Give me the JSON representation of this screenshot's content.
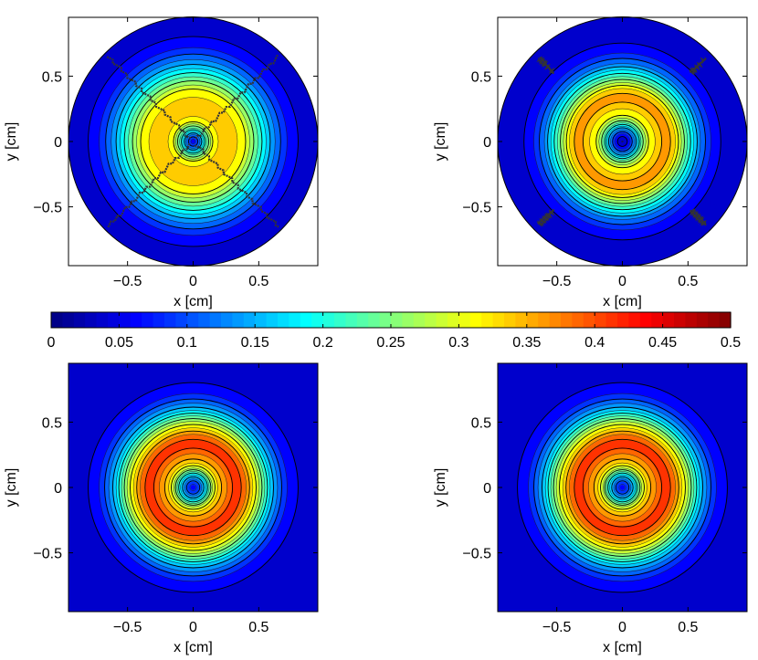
{
  "colorbar": {
    "colormap": "jet",
    "range": [
      0,
      0.5
    ],
    "ticks": [
      "0",
      "0.05",
      "0.1",
      "0.15",
      "0.2",
      "0.25",
      "0.3",
      "0.35",
      "0.4",
      "0.45",
      "0.5"
    ]
  },
  "chart_data": [
    {
      "type": "heatmap",
      "subtype": "filled-contour",
      "panel": "top-left",
      "domain_shape": "circle",
      "xlabel": "x [cm]",
      "ylabel": "y [cm]",
      "xlim": [
        -0.95,
        0.95
      ],
      "ylim": [
        -0.95,
        0.95
      ],
      "xticks": [
        "−0.5",
        "0",
        "0.5"
      ],
      "yticks": [
        "0.5",
        "0",
        "−0.5"
      ],
      "radial_profile": {
        "r": [
          0,
          0.05,
          0.1,
          0.15,
          0.2,
          0.3,
          0.4,
          0.5,
          0.6,
          0.7,
          0.8,
          0.95
        ],
        "value": [
          0.05,
          0.12,
          0.22,
          0.3,
          0.33,
          0.34,
          0.3,
          0.22,
          0.14,
          0.08,
          0.05,
          0.04
        ]
      },
      "features": "noisy contours with four diagonal crack lines"
    },
    {
      "type": "heatmap",
      "subtype": "filled-contour",
      "panel": "top-right",
      "domain_shape": "circle",
      "xlabel": "x [cm]",
      "ylabel": "y [cm]",
      "xlim": [
        -0.95,
        0.95
      ],
      "ylim": [
        -0.95,
        0.95
      ],
      "xticks": [
        "−0.5",
        "0",
        "0.5"
      ],
      "yticks": [
        "0.5",
        "0",
        "−0.5"
      ],
      "radial_profile": {
        "r": [
          0,
          0.05,
          0.1,
          0.15,
          0.2,
          0.3,
          0.35,
          0.4,
          0.5,
          0.6,
          0.7,
          0.8,
          0.95
        ],
        "value": [
          0.02,
          0.06,
          0.14,
          0.24,
          0.3,
          0.35,
          0.36,
          0.33,
          0.22,
          0.12,
          0.06,
          0.04,
          0.03
        ]
      },
      "features": "four short diagonal crack lines near r = 0.8"
    },
    {
      "type": "heatmap",
      "subtype": "filled-contour",
      "panel": "bottom-left",
      "domain_shape": "square",
      "xlabel": "x [cm]",
      "ylabel": "y [cm]",
      "xlim": [
        -0.95,
        0.95
      ],
      "ylim": [
        -0.95,
        0.95
      ],
      "xticks": [
        "−0.5",
        "0",
        "0.5"
      ],
      "yticks": [
        "0.5",
        "0",
        "−0.5"
      ],
      "radial_profile": {
        "r": [
          0,
          0.05,
          0.1,
          0.15,
          0.2,
          0.3,
          0.35,
          0.4,
          0.5,
          0.6,
          0.7,
          0.8,
          1.0
        ],
        "value": [
          0.05,
          0.1,
          0.18,
          0.28,
          0.34,
          0.4,
          0.41,
          0.38,
          0.28,
          0.16,
          0.08,
          0.05,
          0.04
        ]
      },
      "features": "smooth concentric rings"
    },
    {
      "type": "heatmap",
      "subtype": "filled-contour",
      "panel": "bottom-right",
      "domain_shape": "square",
      "xlabel": "x [cm]",
      "ylabel": "y [cm]",
      "xlim": [
        -0.95,
        0.95
      ],
      "ylim": [
        -0.95,
        0.95
      ],
      "xticks": [
        "−0.5",
        "0",
        "0.5"
      ],
      "yticks": [
        "0.5",
        "0",
        "−0.5"
      ],
      "radial_profile": {
        "r": [
          0,
          0.05,
          0.1,
          0.15,
          0.2,
          0.3,
          0.35,
          0.4,
          0.5,
          0.6,
          0.7,
          0.8,
          1.0
        ],
        "value": [
          0.05,
          0.1,
          0.18,
          0.28,
          0.34,
          0.4,
          0.41,
          0.38,
          0.28,
          0.16,
          0.08,
          0.05,
          0.04
        ]
      },
      "features": "smooth concentric rings"
    }
  ]
}
